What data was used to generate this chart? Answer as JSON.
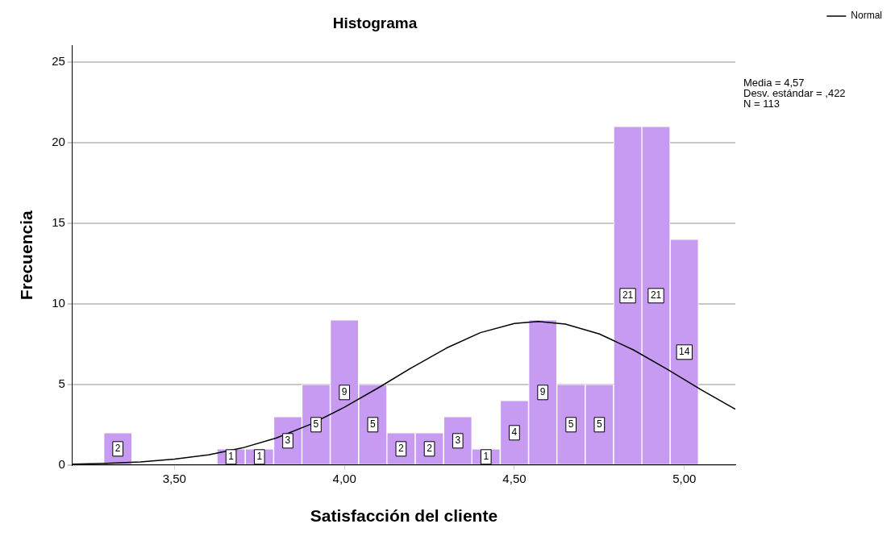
{
  "chart_data": {
    "type": "histogram",
    "title": "Histograma",
    "xlabel": "Satisfacción del cliente",
    "ylabel": "Frecuencia",
    "bins": [
      3.292,
      3.375,
      3.458,
      3.542,
      3.625,
      3.708,
      3.792,
      3.875,
      3.958,
      4.042,
      4.125,
      4.208,
      4.292,
      4.375,
      4.458,
      4.542,
      4.625,
      4.708,
      4.792,
      4.875,
      4.958,
      5.042
    ],
    "series": [
      {
        "type": "histogram",
        "color": "#c79bf2",
        "values": [
          2,
          0,
          0,
          0,
          1,
          1,
          3,
          5,
          9,
          5,
          2,
          2,
          3,
          1,
          4,
          9,
          5,
          5,
          21,
          21,
          14
        ],
        "value_labels": [
          "2",
          null,
          null,
          null,
          "1",
          "1",
          "3",
          "5",
          "9",
          "5",
          "2",
          "2",
          "3",
          "1",
          "4",
          "9",
          "5",
          "5",
          "21",
          "21",
          "14"
        ]
      },
      {
        "type": "line",
        "name": "Normal",
        "color": "#000000",
        "x": [
          3.2,
          3.3,
          3.4,
          3.5,
          3.6,
          3.7,
          3.8,
          3.9,
          4.0,
          4.1,
          4.2,
          4.3,
          4.4,
          4.5,
          4.57,
          4.65,
          4.75,
          4.85,
          4.95,
          5.05,
          5.15
        ],
        "values": [
          0.05,
          0.1,
          0.19,
          0.36,
          0.63,
          1.06,
          1.68,
          2.52,
          3.58,
          4.79,
          6.06,
          7.25,
          8.21,
          8.78,
          8.9,
          8.74,
          8.13,
          7.14,
          5.93,
          4.66,
          3.46
        ]
      }
    ],
    "xlim": [
      3.2,
      5.15
    ],
    "xticks": [
      {
        "value": 3.5,
        "label": "3,50"
      },
      {
        "value": 4.0,
        "label": "4,00"
      },
      {
        "value": 4.5,
        "label": "4,50"
      },
      {
        "value": 5.0,
        "label": "5,00"
      }
    ],
    "ylim": [
      0,
      26
    ],
    "yticks": [
      0,
      5,
      10,
      15,
      20,
      25
    ],
    "grid": "y",
    "legend": "top right",
    "annotations": [
      "Media = 4,57",
      "Desv. estándar = ,422",
      "N = 113"
    ]
  }
}
